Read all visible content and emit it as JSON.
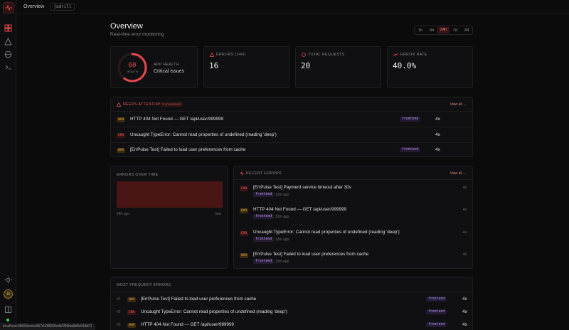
{
  "topbar": {
    "tab": "Overview",
    "user_chip": "jsdrill"
  },
  "page": {
    "title": "Overview",
    "subtitle": "Real-time error monitoring"
  },
  "range": {
    "options": [
      "1h",
      "6h",
      "24h",
      "7d",
      "All"
    ],
    "selected": "24h"
  },
  "health": {
    "score": "60",
    "score_label": "HEALTH",
    "label": "APP HEALTH",
    "status": "Critical issues",
    "score_value": 60,
    "color": "#e5484d"
  },
  "stats": {
    "errors": {
      "label": "ERRORS (24H)",
      "value": "16"
    },
    "requests": {
      "label": "TOTAL REQUESTS",
      "value": "20"
    },
    "rate": {
      "label": "ERROR RATE",
      "value": "40.0%"
    }
  },
  "attention": {
    "title": "NEEDS ATTENTION",
    "badge": "3 unresolved",
    "view_all": "View all →",
    "rows": [
      {
        "code": "WAR",
        "text": "HTTP 404 Not Found — GET /api/user/999999",
        "tag": "frontend",
        "count": "4x"
      },
      {
        "code": "ERR",
        "text": "Uncaught TypeError: Cannot read properties of undefined (reading 'deep')",
        "tag": "frontend",
        "count": "4x"
      },
      {
        "code": "WAR",
        "text": "[ErrPulse Test] Failed to load user preferences from cache",
        "tag": "frontend",
        "count": "4x"
      }
    ]
  },
  "errors_over_time": {
    "title": "ERRORS OVER TIME",
    "start": "24h ago",
    "end": "now"
  },
  "recent": {
    "title": "RECENT ERRORS",
    "view_all": "View all →",
    "rows": [
      {
        "code": "ERR",
        "text": "[ErrPulse Test] Payment service timeout after 30s",
        "tag": "frontend",
        "time": "13m ago",
        "count": "4x"
      },
      {
        "code": "WAR",
        "text": "HTTP 404 Not Found — GET /api/user/999999",
        "tag": "frontend",
        "time": "13m ago",
        "count": "4x"
      },
      {
        "code": "ERR",
        "text": "Uncaught TypeError: Cannot read properties of undefined (reading 'deep')",
        "tag": "frontend",
        "time": "13m ago",
        "count": "4x"
      },
      {
        "code": "WAR",
        "text": "[ErrPulse Test] Failed to load user preferences from cache",
        "tag": "frontend",
        "time": "13m ago",
        "count": "4x"
      }
    ]
  },
  "frequent": {
    "title": "MOST FREQUENT ERRORS",
    "rows": [
      {
        "rank": "#1",
        "code": "WAR",
        "text": "[ErrPulse Test] Failed to load user preferences from cache",
        "tag": "frontend",
        "count": "4x"
      },
      {
        "rank": "#2",
        "code": "ERR",
        "text": "Uncaught TypeError: Cannot read properties of undefined (reading 'deep')",
        "tag": "frontend",
        "count": "4x"
      },
      {
        "rank": "#3",
        "code": "WAR",
        "text": "HTTP 404 Not Found — GET /api/user/999999",
        "tag": "frontend",
        "count": "4x"
      }
    ]
  },
  "sidebar": {
    "avatar_initials": "JS"
  },
  "status_url": "localhost:3800/errors/f67d13f600fcdb2f93be8d0b034d27"
}
